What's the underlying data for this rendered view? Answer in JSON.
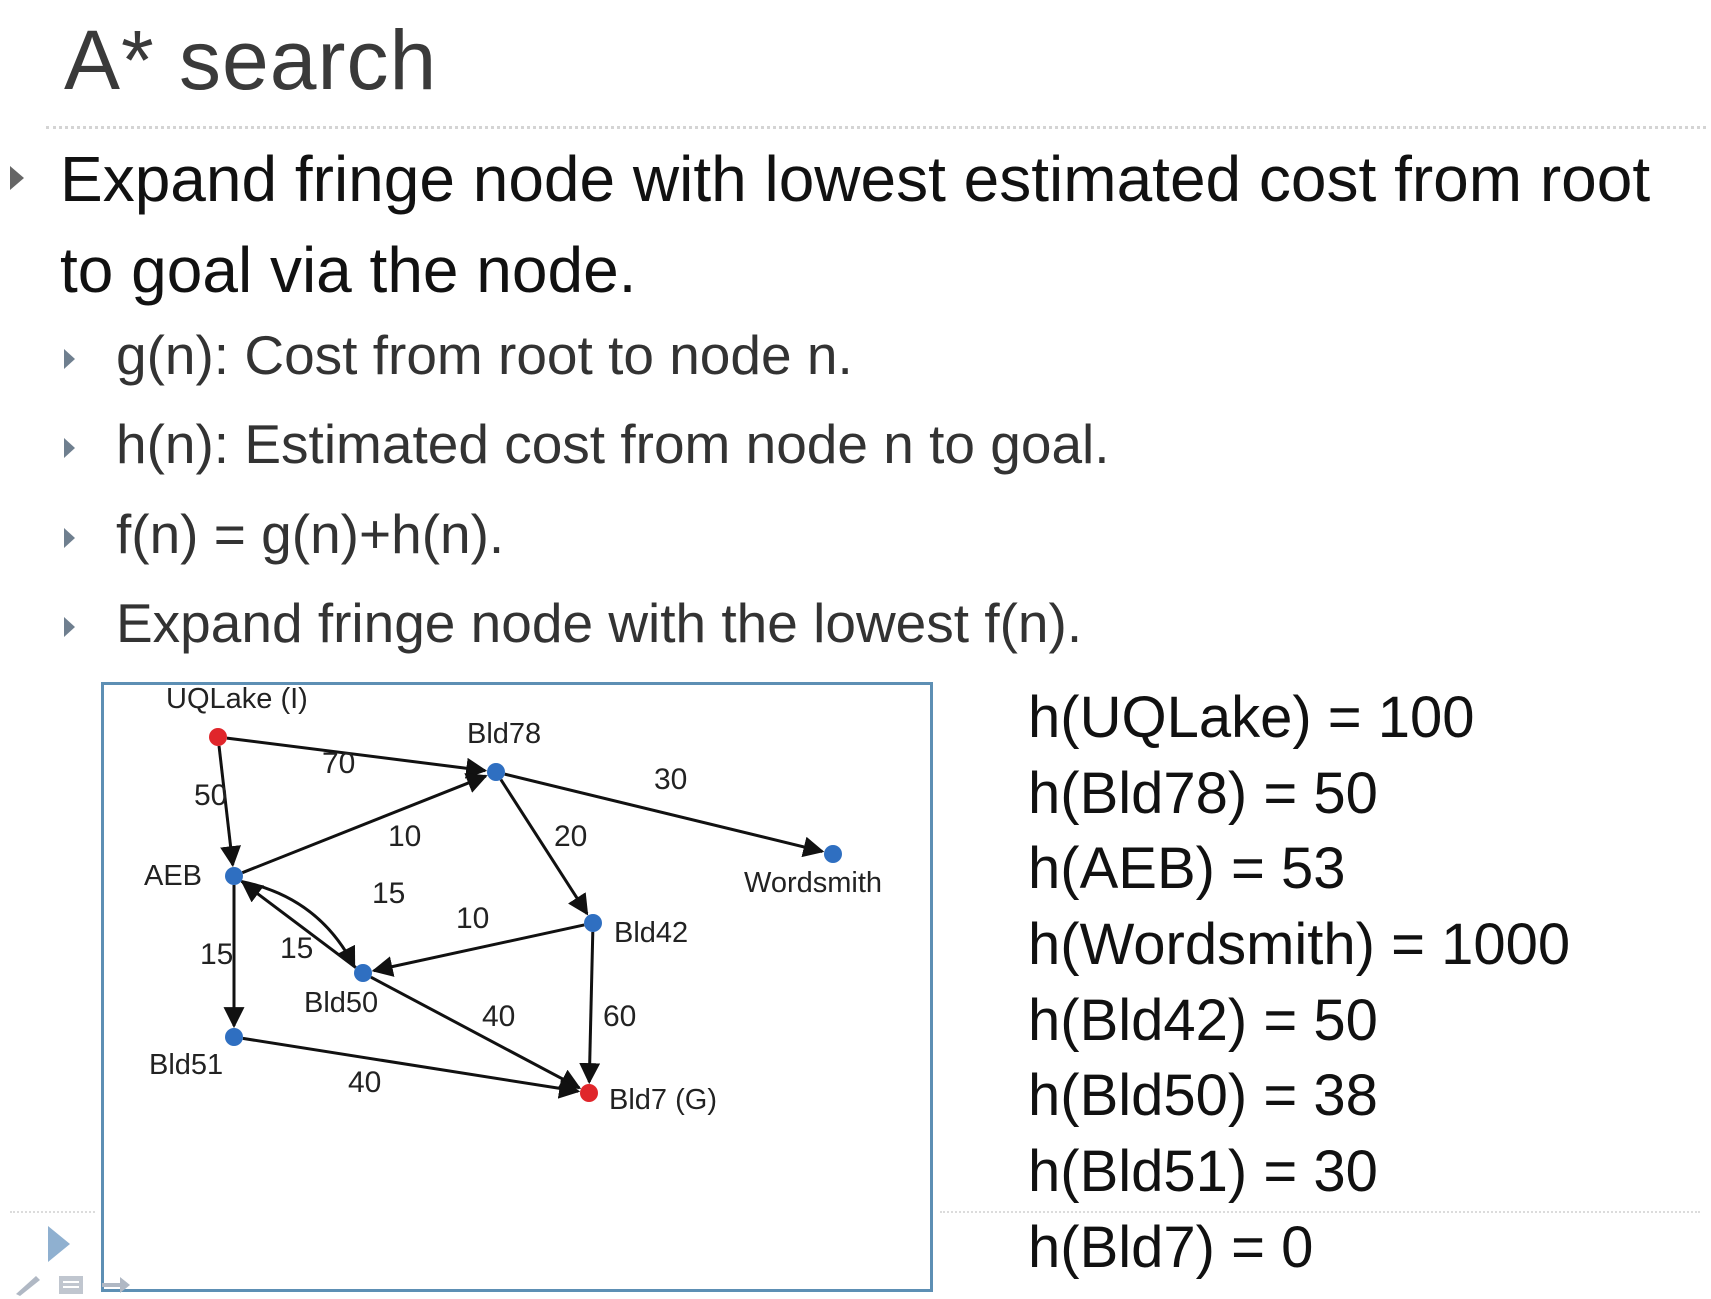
{
  "slide": {
    "title": "A* search",
    "bullet_main": "Expand fringe node with lowest estimated cost from root to goal via the node.",
    "sub_bullets": [
      "g(n): Cost from root to node n.",
      "h(n): Estimated cost from node n to goal.",
      "f(n) = g(n)+h(n).",
      "Expand fringe node with the lowest f(n)."
    ]
  },
  "graph": {
    "nodes": [
      {
        "id": "UQLake",
        "label": "UQLake (I)",
        "color": "#e0262b"
      },
      {
        "id": "Bld78",
        "label": "Bld78",
        "color": "#2f6fc1"
      },
      {
        "id": "AEB",
        "label": "AEB",
        "color": "#2f6fc1"
      },
      {
        "id": "Wordsmith",
        "label": "Wordsmith",
        "color": "#2f6fc1"
      },
      {
        "id": "Bld42",
        "label": "Bld42",
        "color": "#2f6fc1"
      },
      {
        "id": "Bld50",
        "label": "Bld50",
        "color": "#2f6fc1"
      },
      {
        "id": "Bld51",
        "label": "Bld51",
        "color": "#2f6fc1"
      },
      {
        "id": "Bld7",
        "label": "Bld7 (G)",
        "color": "#e0262b"
      }
    ],
    "edges": [
      {
        "from": "UQLake",
        "to": "Bld78",
        "weight": "70"
      },
      {
        "from": "UQLake",
        "to": "AEB",
        "weight": "50"
      },
      {
        "from": "Bld78",
        "to": "Wordsmith",
        "weight": "30"
      },
      {
        "from": "AEB",
        "to": "Bld78",
        "weight": "10"
      },
      {
        "from": "Bld78",
        "to": "Bld42",
        "weight": "20"
      },
      {
        "from": "AEB",
        "to": "Bld50",
        "weight": "15"
      },
      {
        "from": "Bld50",
        "to": "AEB",
        "weight": "15"
      },
      {
        "from": "AEB",
        "to": "Bld51",
        "weight": "15"
      },
      {
        "from": "Bld42",
        "to": "Bld50",
        "weight": "10"
      },
      {
        "from": "Bld50",
        "to": "Bld7",
        "weight": "40"
      },
      {
        "from": "Bld42",
        "to": "Bld7",
        "weight": "60"
      },
      {
        "from": "Bld51",
        "to": "Bld7",
        "weight": "40"
      }
    ]
  },
  "heuristics": [
    "h(UQLake) = 100",
    "h(Bld78) = 50",
    "h(AEB) = 53",
    "h(Wordsmith) = 1000",
    "h(Bld42) = 50",
    "h(Bld50) = 38",
    "h(Bld51) = 30",
    "h(Bld7) = 0"
  ],
  "colors": {
    "accent": "#5d8fb4",
    "start_goal_node": "#e0262b",
    "node": "#2f6fc1"
  },
  "icons": [
    "play-icon",
    "pen-icon",
    "menu-icon",
    "arrow-icon"
  ]
}
